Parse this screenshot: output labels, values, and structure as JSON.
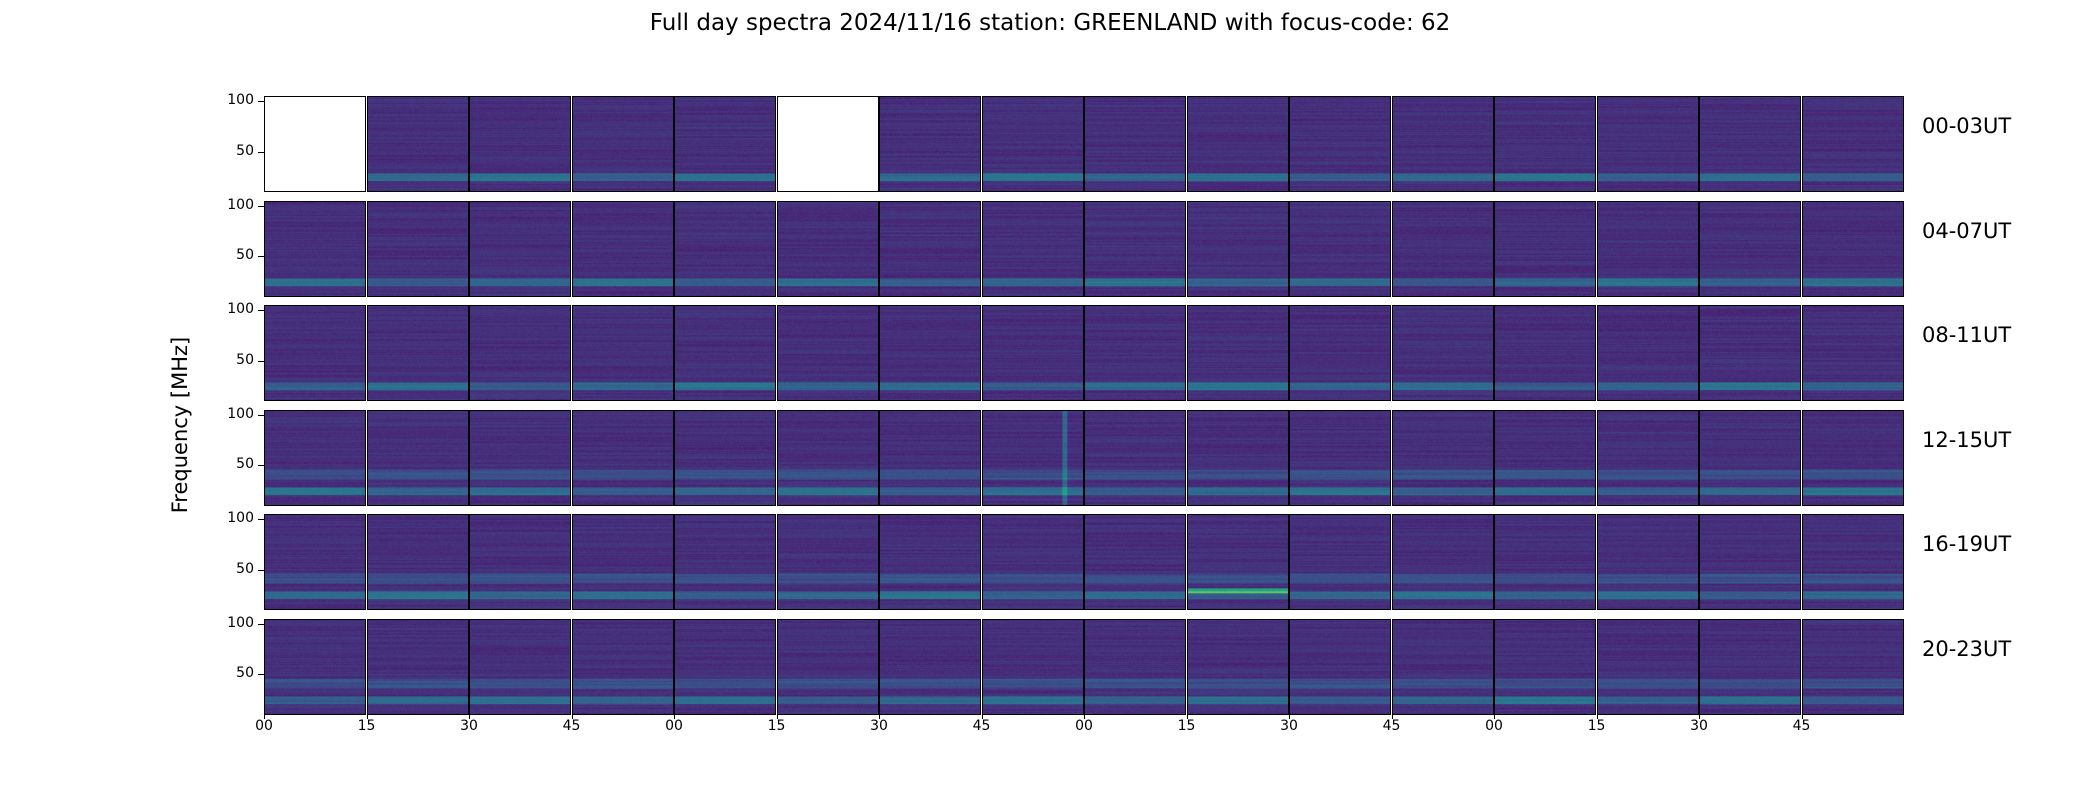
{
  "chart_data": {
    "type": "heatmap",
    "title": "Full day spectra 2024/11/16 station: GREENLAND with focus-code: 62",
    "ylabel": "Frequency [MHz]",
    "xlabel": "",
    "y_ticks": [
      "100",
      "50"
    ],
    "x_ticks": [
      "00",
      "15",
      "30",
      "45",
      "00",
      "15",
      "30",
      "45",
      "00",
      "15",
      "30",
      "45",
      "00",
      "15",
      "30",
      "45"
    ],
    "colormap": "viridis",
    "rows": [
      {
        "label": "00-03UT",
        "missing_panels": [
          0,
          5
        ]
      },
      {
        "label": "04-07UT",
        "missing_panels": []
      },
      {
        "label": "08-11UT",
        "missing_panels": []
      },
      {
        "label": "12-15UT",
        "missing_panels": []
      },
      {
        "label": "16-19UT",
        "missing_panels": []
      },
      {
        "label": "20-23UT",
        "missing_panels": []
      }
    ],
    "panels_per_row": 16,
    "ylim": [
      10,
      105
    ],
    "colors": {
      "background": "#3f1a5a",
      "low": "#46105f",
      "mid": "#2c7d8c",
      "high": "#3fdb7a",
      "empty": "#ffffff"
    }
  }
}
